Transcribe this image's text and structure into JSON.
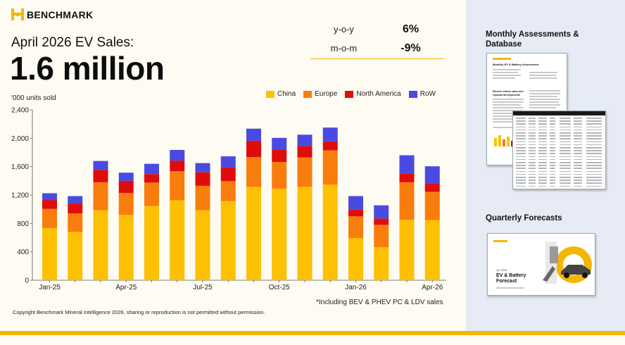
{
  "brand": {
    "name": "BENCHMARK"
  },
  "header": {
    "subtitle": "April 2026 EV Sales:",
    "headline": "1.6 million"
  },
  "stats": [
    {
      "label": "y-o-y",
      "value": "6%"
    },
    {
      "label": "m-o-m",
      "value": "-9%"
    }
  ],
  "colors": {
    "China": "#fdc003",
    "Europe": "#f97d0d",
    "North America": "#e00c0c",
    "RoW": "#4a4ae0",
    "accent": "#f2b705"
  },
  "chart_data": {
    "type": "bar",
    "stacked": true,
    "ylabel": "'000 units sold",
    "ylim": [
      0,
      2400
    ],
    "yticks": [
      "0",
      "400",
      "800",
      "1,200",
      "1,600",
      "2,000",
      "2,400"
    ],
    "xtick_labels": [
      "Jan-25",
      "Apr-25",
      "Jul-25",
      "Oct-25",
      "Jan-26",
      "Apr-26"
    ],
    "categories": [
      "Jan-25",
      "Feb-25",
      "Mar-25",
      "Apr-25",
      "May-25",
      "Jun-25",
      "Jul-25",
      "Aug-25",
      "Sep-25",
      "Oct-25",
      "Nov-25",
      "Dec-25",
      "Jan-26",
      "Feb-26",
      "Mar-26",
      "Apr-26"
    ],
    "legend_position": "top-right",
    "grid": false,
    "series": [
      {
        "name": "China",
        "values": [
          735,
          680,
          985,
          920,
          1045,
          1125,
          985,
          1115,
          1315,
          1290,
          1315,
          1345,
          595,
          465,
          850,
          845
        ]
      },
      {
        "name": "Europe",
        "values": [
          270,
          260,
          395,
          310,
          330,
          410,
          345,
          280,
          420,
          375,
          415,
          485,
          305,
          315,
          530,
          400
        ]
      },
      {
        "name": "North America",
        "values": [
          125,
          140,
          175,
          170,
          120,
          150,
          190,
          200,
          230,
          170,
          160,
          125,
          95,
          90,
          125,
          120
        ]
      },
      {
        "name": "RoW",
        "values": [
          95,
          105,
          125,
          115,
          145,
          150,
          130,
          150,
          170,
          170,
          160,
          195,
          190,
          185,
          255,
          240
        ]
      }
    ]
  },
  "footnote": "*Including BEV & PHEV PC & LDV sales",
  "copyright": "Copyright Benchmark Mineral Intelligence 2026, sharing or reproduction is not permitted without permission.",
  "right_panel": {
    "monthly_title": "Monthly Assessments & Database",
    "quarterly_title": "Quarterly Forecasts",
    "doc_title": "Monthly EV & Battery Assessment",
    "doc_section": "Electric vehicle sales and regional developments",
    "forecast_quarter": "Q2 2026",
    "forecast_title": "EV & Battery Forecast"
  }
}
